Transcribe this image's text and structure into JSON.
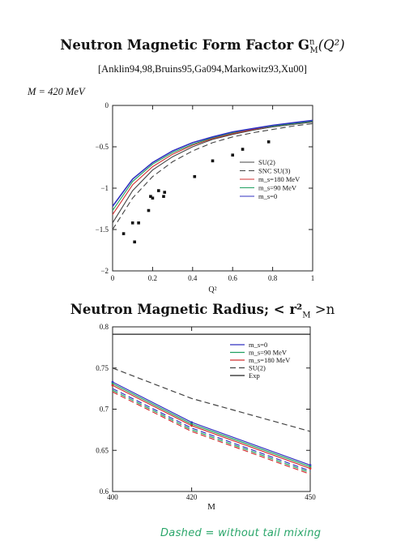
{
  "page": {
    "title1": "Neutron Magnetic Form Factor G",
    "title1_sup": "n",
    "title1_sub": "M",
    "title1_tail": "(Q²)",
    "references": "[Anklin94,98,Bruins95,Ga094,Markowitz93,Xu00]",
    "mass_label": "M = 420 MeV",
    "title2": "Neutron Magnetic Radius; < r²",
    "title2_sub": "M",
    "title2_tail": " >n",
    "note": "Dashed = without tail mixing"
  },
  "chart_data": [
    {
      "type": "line",
      "xlabel": "Q²",
      "ylabel": "",
      "xlim": [
        0,
        1
      ],
      "ylim": [
        -2,
        0
      ],
      "xticks": [
        "0",
        "0.2",
        "0.4",
        "0.6",
        "0.8",
        "1"
      ],
      "yticks": [
        "0",
        "−0.5",
        "−1",
        "−1.5",
        "−2"
      ],
      "legend_position": "right",
      "series": [
        {
          "name": "SU(2)",
          "style": "solid",
          "color": "#444444",
          "x": [
            0,
            0.1,
            0.2,
            0.3,
            0.4,
            0.5,
            0.6,
            0.7,
            0.8,
            0.9,
            1
          ],
          "y": [
            -1.42,
            -1.03,
            -0.78,
            -0.62,
            -0.5,
            -0.41,
            -0.35,
            -0.3,
            -0.26,
            -0.23,
            -0.2
          ]
        },
        {
          "name": "SNC SU(3)",
          "style": "dashed",
          "color": "#444444",
          "x": [
            0,
            0.1,
            0.2,
            0.3,
            0.4,
            0.5,
            0.6,
            0.7,
            0.8,
            0.9,
            1
          ],
          "y": [
            -1.5,
            -1.12,
            -0.86,
            -0.68,
            -0.55,
            -0.45,
            -0.38,
            -0.33,
            -0.29,
            -0.25,
            -0.22
          ]
        },
        {
          "name": "m_s=180 MeV",
          "style": "solid",
          "color": "#d03030",
          "x": [
            0,
            0.1,
            0.2,
            0.3,
            0.4,
            0.5,
            0.6,
            0.7,
            0.8,
            0.9,
            1
          ],
          "y": [
            -1.32,
            -0.96,
            -0.74,
            -0.59,
            -0.48,
            -0.4,
            -0.34,
            -0.29,
            -0.25,
            -0.22,
            -0.19
          ]
        },
        {
          "name": "m_s=90 MeV",
          "style": "solid",
          "color": "#20a060",
          "x": [
            0,
            0.1,
            0.2,
            0.3,
            0.4,
            0.5,
            0.6,
            0.7,
            0.8,
            0.9,
            1
          ],
          "y": [
            -1.27,
            -0.92,
            -0.71,
            -0.57,
            -0.47,
            -0.39,
            -0.33,
            -0.28,
            -0.25,
            -0.22,
            -0.19
          ]
        },
        {
          "name": "m_s=0",
          "style": "solid",
          "color": "#3030c0",
          "x": [
            0,
            0.1,
            0.2,
            0.3,
            0.4,
            0.5,
            0.6,
            0.7,
            0.8,
            0.9,
            1
          ],
          "y": [
            -1.22,
            -0.89,
            -0.69,
            -0.55,
            -0.45,
            -0.38,
            -0.32,
            -0.28,
            -0.24,
            -0.21,
            -0.18
          ]
        }
      ],
      "experimental_points": [
        {
          "x": 0.055,
          "y": -1.55
        },
        {
          "x": 0.1,
          "y": -1.42
        },
        {
          "x": 0.11,
          "y": -1.65
        },
        {
          "x": 0.13,
          "y": -1.42
        },
        {
          "x": 0.18,
          "y": -1.27
        },
        {
          "x": 0.19,
          "y": -1.1
        },
        {
          "x": 0.2,
          "y": -1.12
        },
        {
          "x": 0.23,
          "y": -1.03
        },
        {
          "x": 0.255,
          "y": -1.1
        },
        {
          "x": 0.26,
          "y": -1.05
        },
        {
          "x": 0.41,
          "y": -0.86
        },
        {
          "x": 0.5,
          "y": -0.67
        },
        {
          "x": 0.6,
          "y": -0.6
        },
        {
          "x": 0.65,
          "y": -0.53
        },
        {
          "x": 0.78,
          "y": -0.44
        }
      ]
    },
    {
      "type": "line",
      "xlabel": "M",
      "ylabel": "",
      "xlim": [
        400,
        450
      ],
      "ylim": [
        0.6,
        0.8
      ],
      "xticks": [
        "400",
        "420",
        "450"
      ],
      "yticks": [
        "0.8",
        "0.75",
        "0.7",
        "0.65",
        "0.6"
      ],
      "legend_position": "top-right",
      "series": [
        {
          "name": "m_s=0",
          "style": "solid",
          "color": "#3030c0",
          "x": [
            400,
            420,
            450
          ],
          "y": [
            0.733,
            0.684,
            0.632
          ]
        },
        {
          "name": "m_s=90 MeV",
          "style": "solid",
          "color": "#20a060",
          "x": [
            400,
            420,
            450
          ],
          "y": [
            0.731,
            0.682,
            0.63
          ]
        },
        {
          "name": "m_s=180 MeV",
          "style": "solid",
          "color": "#d03030",
          "x": [
            400,
            420,
            450
          ],
          "y": [
            0.729,
            0.68,
            0.628
          ]
        },
        {
          "name": "SU(2)",
          "style": "dashed",
          "color": "#444444",
          "x": [
            400,
            420,
            450
          ],
          "y": [
            0.75,
            0.713,
            0.673
          ]
        },
        {
          "name": "Exp",
          "style": "solid",
          "color": "#222222",
          "x": [
            400,
            450
          ],
          "y": [
            0.791,
            0.791
          ]
        },
        {
          "name": "",
          "style": "dashed",
          "color": "#3030c0",
          "x": [
            400,
            420,
            450
          ],
          "y": [
            0.725,
            0.677,
            0.625
          ]
        },
        {
          "name": "",
          "style": "dashed",
          "color": "#20a060",
          "x": [
            400,
            420,
            450
          ],
          "y": [
            0.723,
            0.675,
            0.623
          ]
        },
        {
          "name": "",
          "style": "dashed",
          "color": "#d03030",
          "x": [
            400,
            420,
            450
          ],
          "y": [
            0.721,
            0.673,
            0.621
          ]
        }
      ]
    }
  ]
}
